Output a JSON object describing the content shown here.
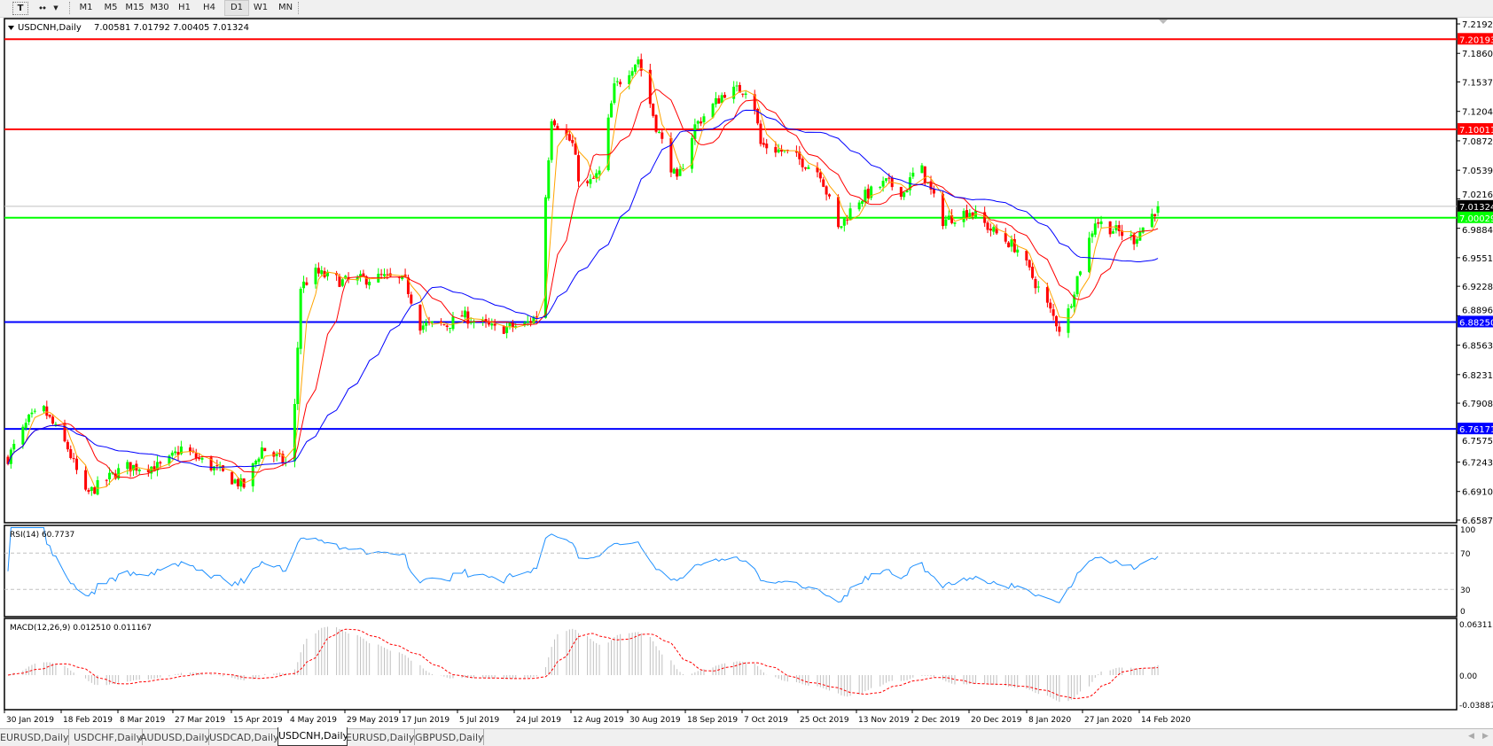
{
  "toolbar": {
    "icons": [
      "text-tool-icon",
      "line-tools-icon",
      "dropdown-arrow-icon"
    ],
    "timeframes": [
      "M1",
      "M5",
      "M15",
      "M30",
      "H1",
      "H4",
      "D1",
      "W1",
      "MN"
    ],
    "active_timeframe": "D1"
  },
  "chart": {
    "symbol_label": "USDCNH,Daily",
    "ohlc": "7.00581 7.01792 7.00405 7.01324",
    "bid": "7.01324",
    "price_ticks": [
      "7.21925",
      "7.18600",
      "7.15370",
      "7.12045",
      "7.08720",
      "7.05395",
      "7.02165",
      "6.98840",
      "6.95515",
      "6.92285",
      "6.88960",
      "6.85635",
      "6.82310",
      "6.79080",
      "6.75755",
      "6.72430",
      "6.69105",
      "6.65875"
    ],
    "levels": [
      {
        "price": "7.20193",
        "color": "#ff0000"
      },
      {
        "price": "7.10011",
        "color": "#ff0000"
      },
      {
        "price": "7.00029",
        "color": "#00ff00"
      },
      {
        "price": "6.88250",
        "color": "#0000ff"
      },
      {
        "price": "6.76171",
        "color": "#0000ff"
      }
    ],
    "date_labels": [
      "30 Jan 2019",
      "18 Feb 2019",
      "8 Mar 2019",
      "27 Mar 2019",
      "15 Apr 2019",
      "4 May 2019",
      "29 May 2019",
      "17 Jun 2019",
      "5 Jul 2019",
      "24 Jul 2019",
      "12 Aug 2019",
      "30 Aug 2019",
      "18 Sep 2019",
      "7 Oct 2019",
      "25 Oct 2019",
      "13 Nov 2019",
      "2 Dec 2019",
      "20 Dec 2019",
      "8 Jan 2020",
      "27 Jan 2020",
      "14 Feb 2020"
    ],
    "colors": {
      "bull": "#00ff00",
      "bear": "#ff0000",
      "ma_fast": "#ffa500",
      "ma_mid": "#ff0000",
      "ma_slow": "#0000ff",
      "rsi": "#1e90ff",
      "macd_hist": "#c0c0c0",
      "macd_signal": "#ff0000"
    }
  },
  "rsi": {
    "label": "RSI(14) 60.7737",
    "ticks": [
      "100",
      "70",
      "30",
      "0"
    ]
  },
  "macd": {
    "label": "MACD(12,26,9) 0.012510 0.011167",
    "ticks": [
      "0.063113",
      "0.00",
      "-0.038872"
    ]
  },
  "tabs": [
    {
      "label": "EURUSD,Daily",
      "active": false
    },
    {
      "label": "USDCHF,Daily",
      "active": false
    },
    {
      "label": "AUDUSD,Daily",
      "active": false
    },
    {
      "label": "USDCAD,Daily",
      "active": false
    },
    {
      "label": "USDCNH,Daily",
      "active": true
    },
    {
      "label": "EURUSD,Daily",
      "active": false
    },
    {
      "label": "GBPUSD,Daily",
      "active": false
    }
  ],
  "chart_data": {
    "type": "candlestick",
    "symbol": "USDCNH",
    "timeframe": "Daily",
    "ylim": [
      6.65875,
      7.21925
    ],
    "approx_close_path": [
      [
        "2019-01-30",
        6.729
      ],
      [
        "2019-02-06",
        6.772
      ],
      [
        "2019-02-11",
        6.783
      ],
      [
        "2019-02-19",
        6.74
      ],
      [
        "2019-02-25",
        6.687
      ],
      [
        "2019-03-10",
        6.719
      ],
      [
        "2019-03-23",
        6.719
      ],
      [
        "2019-03-29",
        6.74
      ],
      [
        "2019-04-11",
        6.713
      ],
      [
        "2019-04-19",
        6.697
      ],
      [
        "2019-04-25",
        6.74
      ],
      [
        "2019-05-05",
        6.719
      ],
      [
        "2019-05-08",
        6.922
      ],
      [
        "2019-05-13",
        6.938
      ],
      [
        "2019-05-22",
        6.928
      ],
      [
        "2019-06-04",
        6.933
      ],
      [
        "2019-06-12",
        6.928
      ],
      [
        "2019-06-17",
        6.879
      ],
      [
        "2019-06-26",
        6.879
      ],
      [
        "2019-07-01",
        6.89
      ],
      [
        "2019-07-12",
        6.874
      ],
      [
        "2019-07-22",
        6.879
      ],
      [
        "2019-07-26",
        6.89
      ],
      [
        "2019-07-31",
        7.115
      ],
      [
        "2019-08-07",
        7.083
      ],
      [
        "2019-08-10",
        7.029
      ],
      [
        "2019-08-16",
        7.051
      ],
      [
        "2019-08-21",
        7.147
      ],
      [
        "2019-08-29",
        7.18
      ],
      [
        "2019-09-04",
        7.104
      ],
      [
        "2019-09-11",
        7.04
      ],
      [
        "2019-09-17",
        7.104
      ],
      [
        "2019-09-27",
        7.142
      ],
      [
        "2019-10-06",
        7.147
      ],
      [
        "2019-10-09",
        7.083
      ],
      [
        "2019-10-19",
        7.072
      ],
      [
        "2019-10-29",
        7.051
      ],
      [
        "2019-11-04",
        6.987
      ],
      [
        "2019-11-10",
        7.019
      ],
      [
        "2019-11-20",
        7.04
      ],
      [
        "2019-11-26",
        7.029
      ],
      [
        "2019-12-01",
        7.062
      ],
      [
        "2019-12-09",
        6.997
      ],
      [
        "2019-12-18",
        7.008
      ],
      [
        "2019-12-25",
        6.987
      ],
      [
        "2020-01-03",
        6.965
      ],
      [
        "2020-01-13",
        6.901
      ],
      [
        "2020-01-18",
        6.869
      ],
      [
        "2020-01-23",
        6.933
      ],
      [
        "2020-01-29",
        6.997
      ],
      [
        "2020-02-04",
        6.987
      ],
      [
        "2020-02-11",
        6.976
      ],
      [
        "2020-02-19",
        7.013
      ]
    ],
    "indicators": [
      "MA fast",
      "MA mid",
      "MA slow",
      "RSI(14)",
      "MACD(12,26,9)"
    ],
    "rsi_levels": [
      30,
      70
    ],
    "rsi_last": 60.7737,
    "macd_last": [
      0.01251,
      0.011167
    ]
  }
}
